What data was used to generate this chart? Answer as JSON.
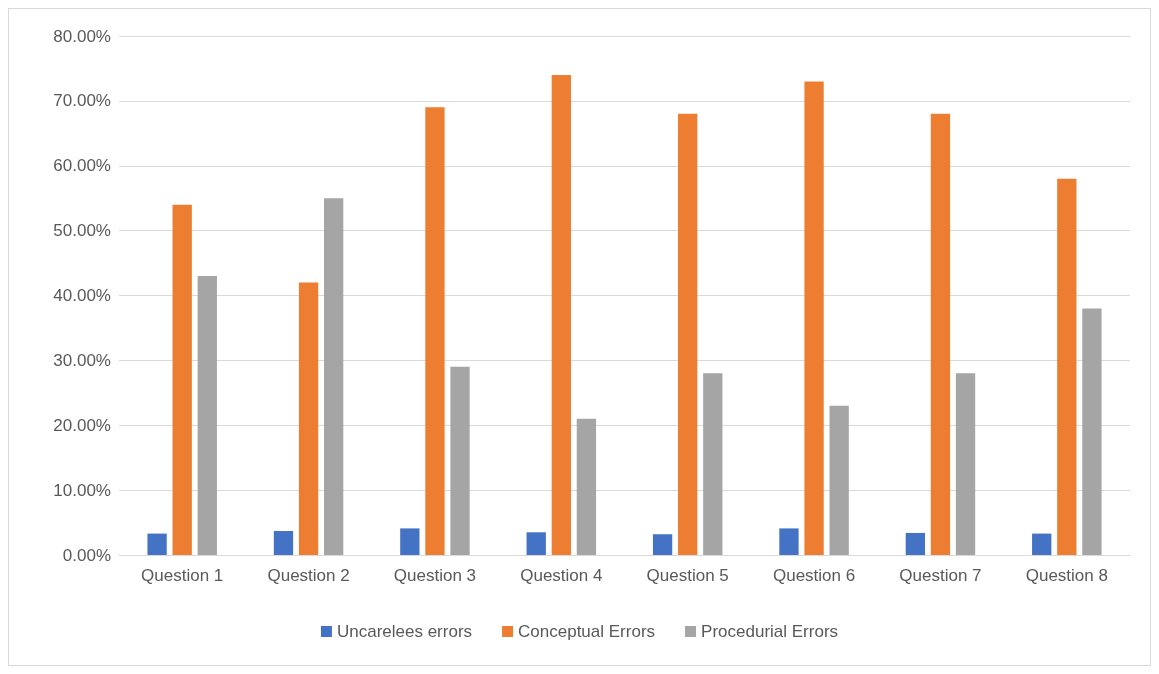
{
  "chart_data": {
    "type": "bar",
    "categories": [
      "Question 1",
      "Question 2",
      "Question 3",
      "Question 4",
      "Question 5",
      "Question 6",
      "Question 7",
      "Question 8"
    ],
    "series": [
      {
        "name": "Uncarelees errors",
        "color": "#4472c4",
        "values": [
          3.3,
          3.7,
          4.1,
          3.5,
          3.2,
          4.1,
          3.4,
          3.3
        ]
      },
      {
        "name": "Conceptual Errors",
        "color": "#ed7d31",
        "values": [
          54,
          42,
          69,
          74,
          68,
          73,
          68,
          58
        ]
      },
      {
        "name": "Procedurial Errors",
        "color": "#a5a5a5",
        "values": [
          43,
          55,
          29,
          21,
          28,
          23,
          28,
          38
        ]
      }
    ],
    "ylim": [
      0,
      80
    ],
    "yticks": [
      {
        "value": 0,
        "label": "0.00%"
      },
      {
        "value": 10,
        "label": "10.00%"
      },
      {
        "value": 20,
        "label": "20.00%"
      },
      {
        "value": 30,
        "label": "30.00%"
      },
      {
        "value": 40,
        "label": "40.00%"
      },
      {
        "value": 50,
        "label": "50.00%"
      },
      {
        "value": 60,
        "label": "60.00%"
      },
      {
        "value": 70,
        "label": "70.00%"
      },
      {
        "value": 80,
        "label": "80.00%"
      }
    ],
    "grid": "y",
    "legend": "bottom"
  }
}
